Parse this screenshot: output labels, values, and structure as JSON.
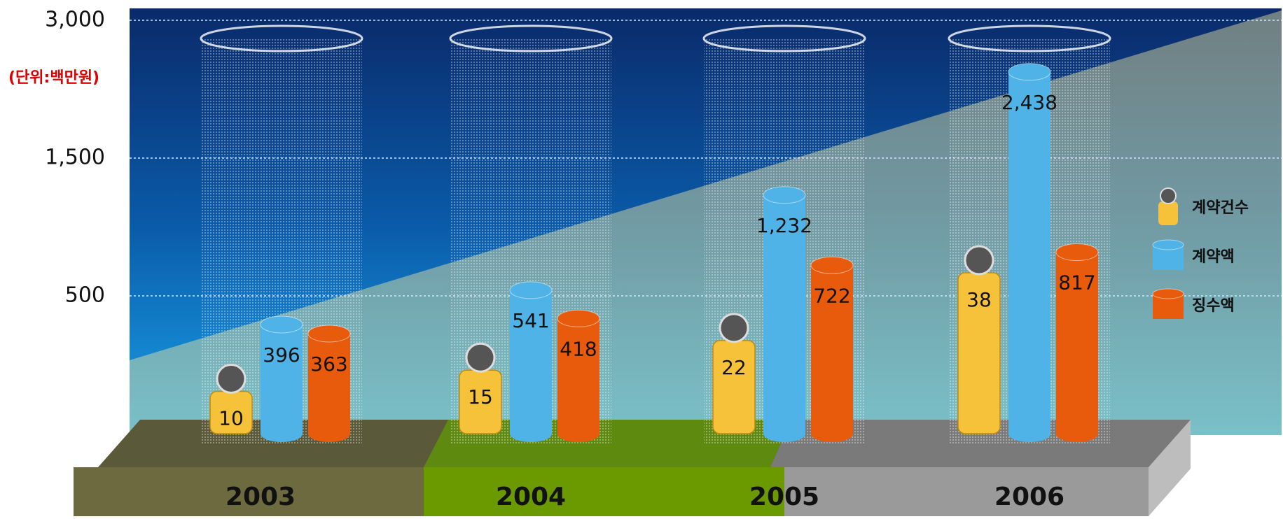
{
  "chart_data": {
    "type": "bar",
    "unit_label": "(단위:백만원)",
    "categories": [
      "2003",
      "2004",
      "2005",
      "2006"
    ],
    "series": [
      {
        "name": "계약건수",
        "color": "#f5c23a",
        "values": [
          10,
          15,
          22,
          38
        ]
      },
      {
        "name": "계약액",
        "color": "#4fb3e8",
        "values": [
          396,
          541,
          1232,
          2438
        ],
        "value_labels": [
          "396",
          "541",
          "1,232",
          "2,438"
        ]
      },
      {
        "name": "징수액",
        "color": "#e85a0c",
        "values": [
          363,
          418,
          722,
          817
        ]
      }
    ],
    "ylim": [
      0,
      3000
    ],
    "yticks": [
      {
        "value": 500,
        "label": "500"
      },
      {
        "value": 1500,
        "label": "1,500"
      },
      {
        "value": 3000,
        "label": "3,000"
      }
    ],
    "grid": true,
    "legend": "right"
  }
}
